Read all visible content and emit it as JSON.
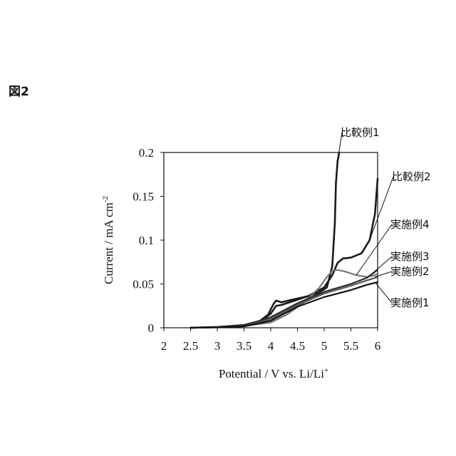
{
  "figure_label": "図2",
  "chart_data": {
    "type": "line",
    "xlabel": "Potential / V vs. Li/Li",
    "xlabel_sup": "+",
    "ylabel": "Current / mA cm",
    "ylabel_sup": "-2",
    "xlim": [
      2,
      6
    ],
    "ylim": [
      0,
      0.2
    ],
    "xticks": [
      "2",
      "2.5",
      "3",
      "3.5",
      "4",
      "4.5",
      "5",
      "5.5",
      "6"
    ],
    "yticks": [
      "0",
      "0.05",
      "0.1",
      "0.15",
      "0.2"
    ],
    "grid": false,
    "series": [
      {
        "name": "比較例1",
        "color": "#1a1a1a",
        "x": [
          2.5,
          3.0,
          3.5,
          3.8,
          3.95,
          4.05,
          4.1,
          4.2,
          4.4,
          4.7,
          4.9,
          5.05,
          5.15,
          5.2,
          5.22,
          5.25,
          5.28
        ],
        "y": [
          0,
          0.0008,
          0.003,
          0.008,
          0.015,
          0.027,
          0.031,
          0.029,
          0.032,
          0.036,
          0.04,
          0.046,
          0.07,
          0.12,
          0.165,
          0.19,
          0.2
        ]
      },
      {
        "name": "比較例2",
        "color": "#1a1a1a",
        "x": [
          2.5,
          3.0,
          3.5,
          3.8,
          4.0,
          4.1,
          4.2,
          4.4,
          4.7,
          5.0,
          5.15,
          5.25,
          5.35,
          5.5,
          5.7,
          5.85,
          5.95,
          6.0
        ],
        "y": [
          0,
          0.0008,
          0.003,
          0.007,
          0.016,
          0.025,
          0.026,
          0.03,
          0.036,
          0.046,
          0.06,
          0.074,
          0.079,
          0.08,
          0.085,
          0.1,
          0.13,
          0.17
        ]
      },
      {
        "name": "実施例4",
        "color": "#777777",
        "x": [
          2.5,
          3.0,
          3.5,
          4.0,
          4.3,
          4.6,
          4.9,
          5.05,
          5.15,
          5.25,
          5.4,
          5.6,
          5.8,
          5.95,
          6.0
        ],
        "y": [
          0,
          0.0006,
          0.002,
          0.006,
          0.015,
          0.028,
          0.045,
          0.058,
          0.065,
          0.066,
          0.064,
          0.06,
          0.058,
          0.06,
          0.062
        ]
      },
      {
        "name": "実施例3",
        "color": "#2a2a2a",
        "x": [
          2.5,
          3.0,
          3.5,
          4.0,
          4.5,
          5.0,
          5.5,
          5.8,
          6.0
        ],
        "y": [
          0,
          0.0006,
          0.002,
          0.012,
          0.028,
          0.041,
          0.05,
          0.057,
          0.066
        ]
      },
      {
        "name": "実施例2",
        "color": "#555555",
        "x": [
          2.5,
          3.0,
          3.5,
          4.0,
          4.5,
          5.0,
          5.5,
          5.8,
          6.0
        ],
        "y": [
          0,
          0.0005,
          0.0018,
          0.01,
          0.026,
          0.039,
          0.048,
          0.054,
          0.058
        ]
      },
      {
        "name": "実施例1",
        "color": "#111111",
        "x": [
          2.5,
          3.0,
          3.5,
          4.0,
          4.5,
          5.0,
          5.5,
          5.8,
          6.0
        ],
        "y": [
          0,
          0.0004,
          0.0015,
          0.008,
          0.024,
          0.035,
          0.043,
          0.049,
          0.052
        ]
      }
    ]
  }
}
